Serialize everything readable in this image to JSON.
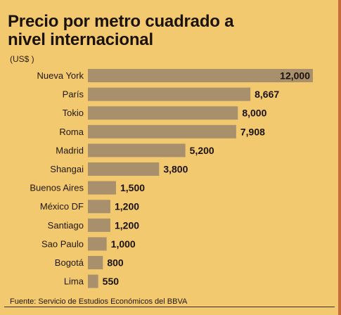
{
  "chart_data": {
    "type": "bar",
    "orientation": "horizontal",
    "title": "Precio por metro cuadrado a nivel internacional",
    "unit": "(US$ )",
    "categories": [
      "Nueva York",
      "París",
      "Tokio",
      "Roma",
      "Madrid",
      "Shangai",
      "Buenos Aires",
      "México DF",
      "Santiago",
      "Sao Paulo",
      "Bogotá",
      "Lima"
    ],
    "values": [
      12000,
      8667,
      8000,
      7908,
      5200,
      3800,
      1500,
      1200,
      1200,
      1000,
      800,
      550
    ],
    "value_labels": [
      "12,000",
      "8,667",
      "8,000",
      "7,908",
      "5,200",
      "3,800",
      "1,500",
      "1,200",
      "1,200",
      "1,000",
      "800",
      "550"
    ],
    "source": "Fuente: Servicio de Estudios Económicos del BBVA",
    "colors": {
      "background": "#f2c96f",
      "bar": "#a9906c",
      "text": "#1b120b"
    }
  }
}
